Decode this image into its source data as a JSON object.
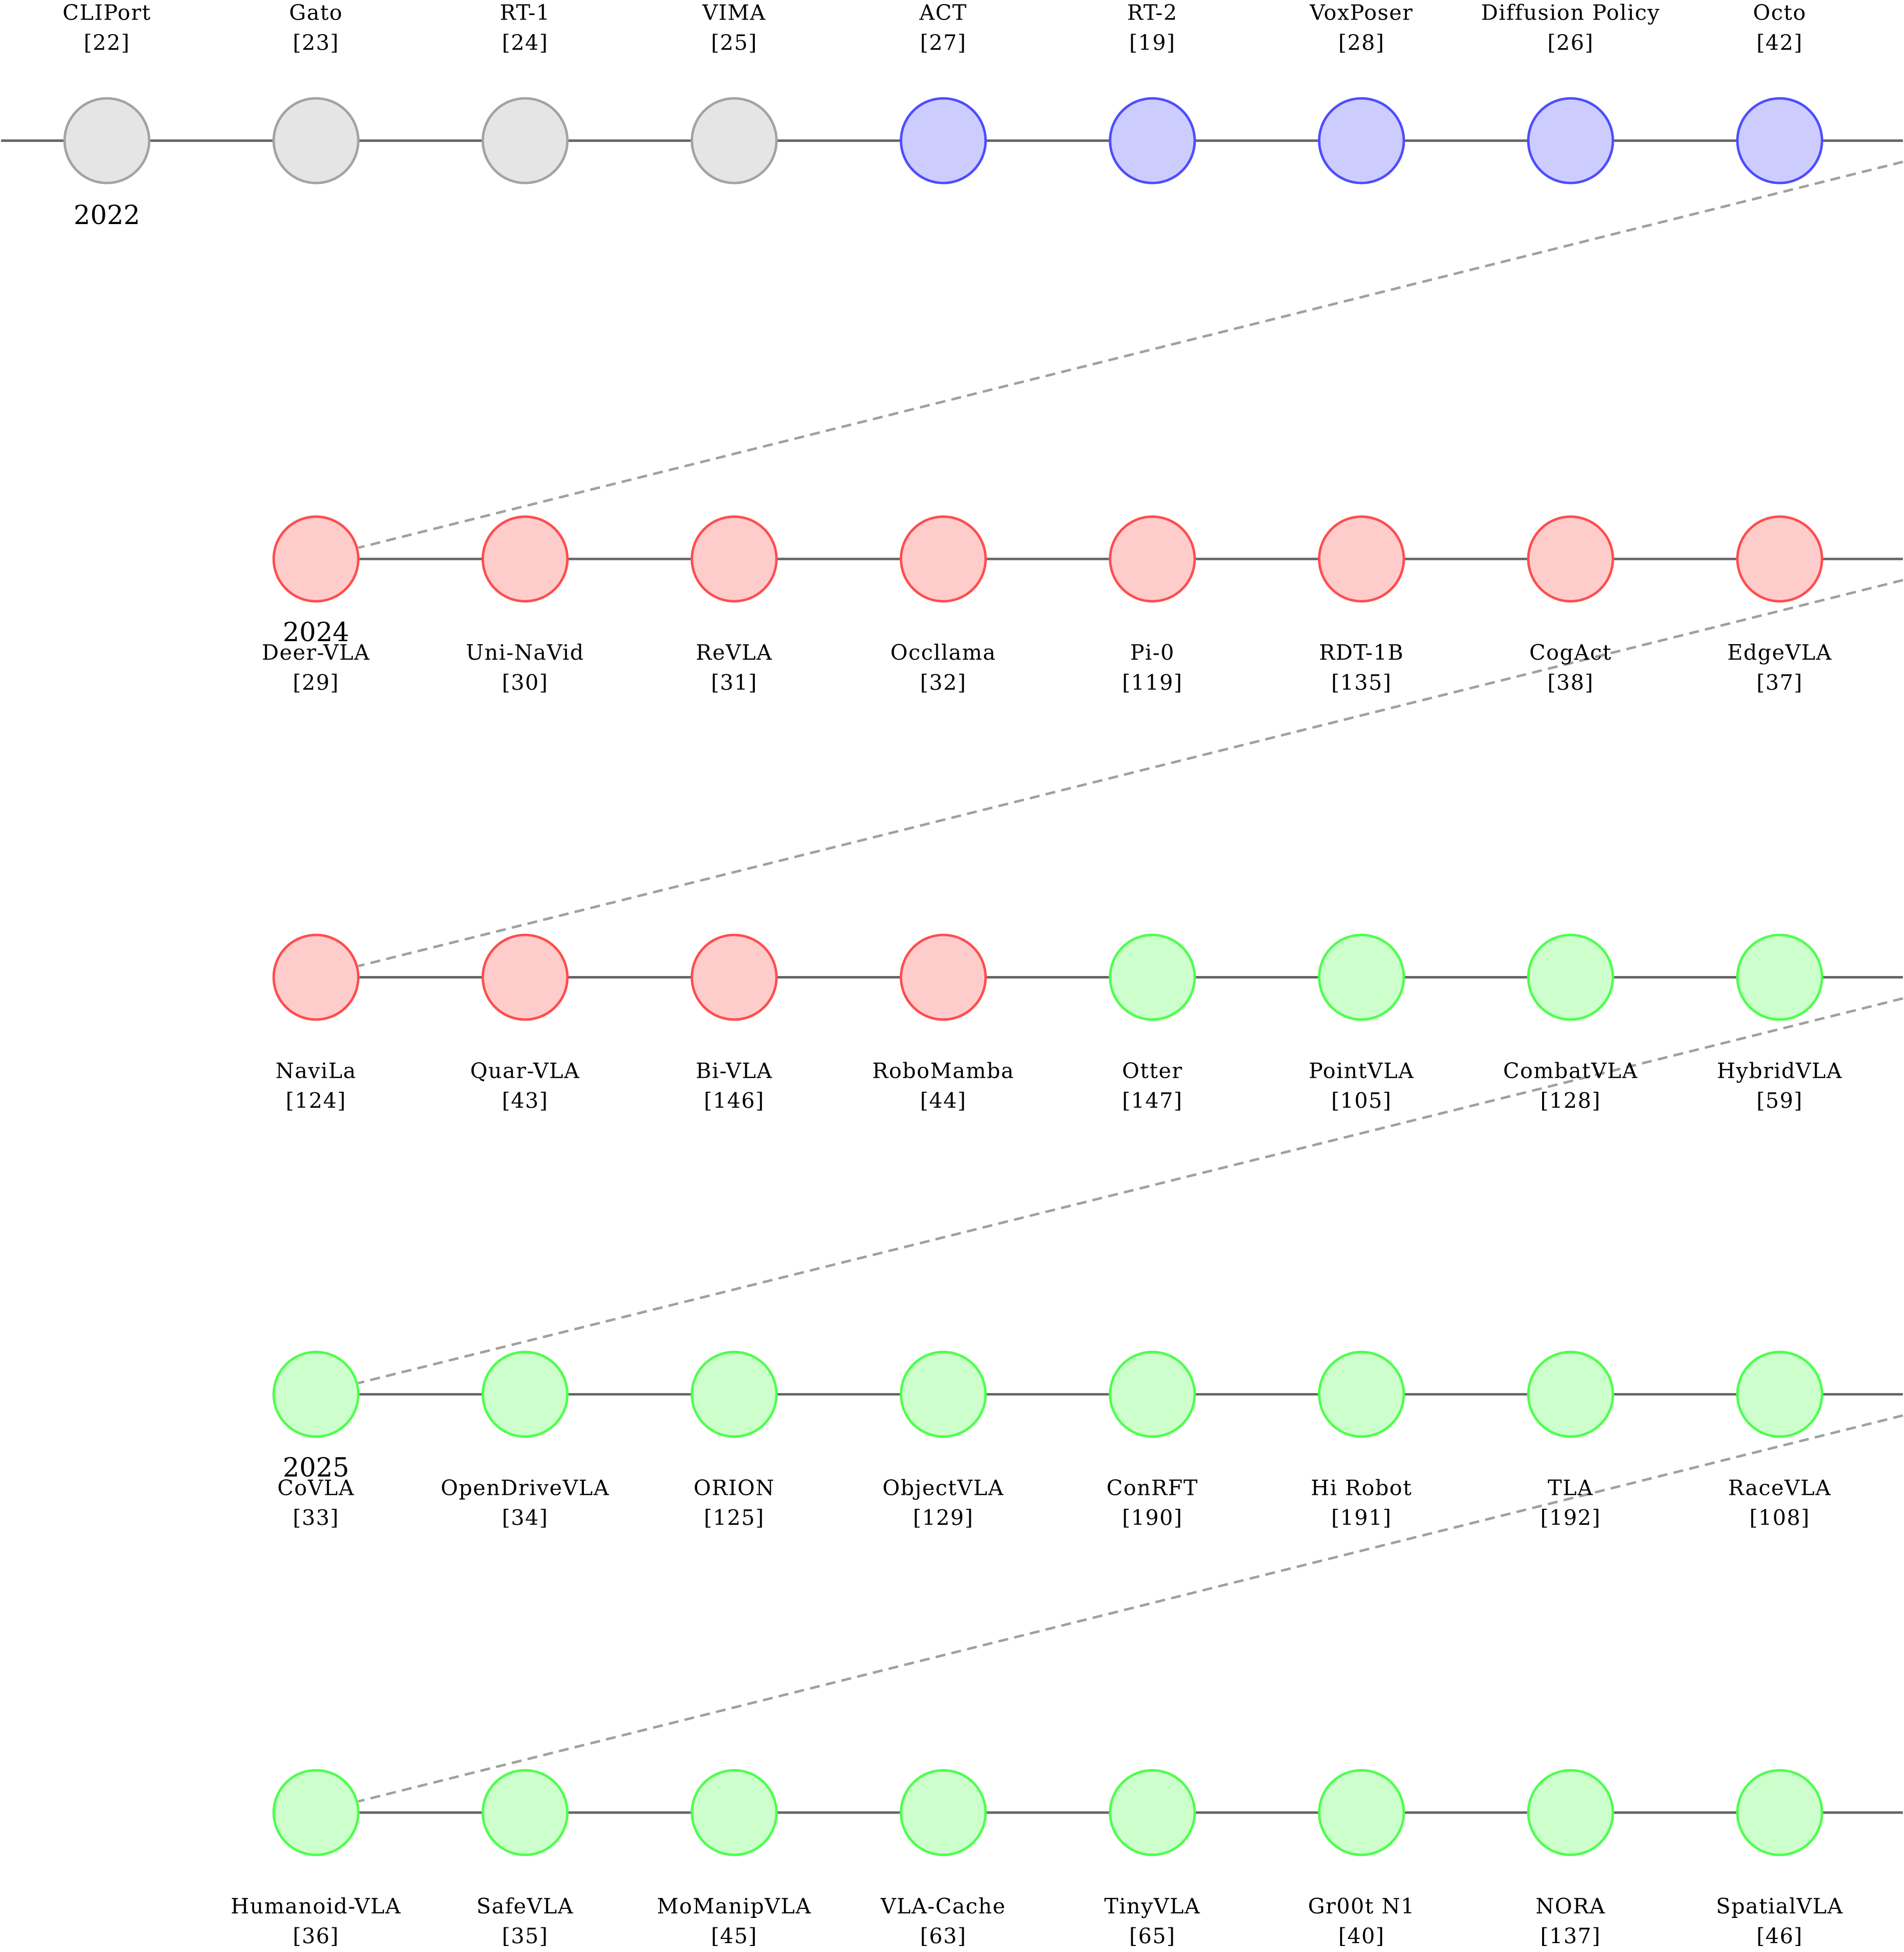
{
  "palette": {
    "gray": {
      "fill": "#e5e5e5",
      "stroke": "#a3a3a3"
    },
    "blue": {
      "fill": "#ccccff",
      "stroke": "#4d4dff"
    },
    "red": {
      "fill": "#ffcccc",
      "stroke": "#ff4d4d"
    },
    "green": {
      "fill": "#ccffcc",
      "stroke": "#4dff4d"
    },
    "line": "#666666",
    "connector": "#a0a0a0"
  },
  "rows": [
    {
      "label_position": "above",
      "year": "2022",
      "nodes": [
        {
          "name": "CLIPort",
          "ref": "[22]",
          "group": "gray"
        },
        {
          "name": "Gato",
          "ref": "[23]",
          "group": "gray"
        },
        {
          "name": "RT-1",
          "ref": "[24]",
          "group": "gray"
        },
        {
          "name": "VIMA",
          "ref": "[25]",
          "group": "gray"
        },
        {
          "name": "ACT",
          "ref": "[27]",
          "group": "blue"
        },
        {
          "name": "RT-2",
          "ref": "[19]",
          "group": "blue"
        },
        {
          "name": "VoxPoser",
          "ref": "[28]",
          "group": "blue"
        },
        {
          "name": "Diffusion Policy",
          "ref": "[26]",
          "group": "blue"
        },
        {
          "name": "Octo",
          "ref": "[42]",
          "group": "blue"
        }
      ]
    },
    {
      "label_position": "below",
      "year": "2024",
      "nodes": [
        {
          "name": "Deer-VLA",
          "ref": "[29]",
          "group": "red"
        },
        {
          "name": "Uni-NaVid",
          "ref": "[30]",
          "group": "red"
        },
        {
          "name": "ReVLA",
          "ref": "[31]",
          "group": "red"
        },
        {
          "name": "Occllama",
          "ref": "[32]",
          "group": "red"
        },
        {
          "name": "Pi-0",
          "ref": "[119]",
          "group": "red"
        },
        {
          "name": "RDT-1B",
          "ref": "[135]",
          "group": "red"
        },
        {
          "name": "CogAct",
          "ref": "[38]",
          "group": "red"
        },
        {
          "name": "EdgeVLA",
          "ref": "[37]",
          "group": "red"
        }
      ]
    },
    {
      "label_position": "below",
      "year": "",
      "nodes": [
        {
          "name": "NaviLa",
          "ref": "[124]",
          "group": "red"
        },
        {
          "name": "Quar-VLA",
          "ref": "[43]",
          "group": "red"
        },
        {
          "name": "Bi-VLA",
          "ref": "[146]",
          "group": "red"
        },
        {
          "name": "RoboMamba",
          "ref": "[44]",
          "group": "red"
        },
        {
          "name": "Otter",
          "ref": "[147]",
          "group": "green"
        },
        {
          "name": "PointVLA",
          "ref": "[105]",
          "group": "green"
        },
        {
          "name": "CombatVLA",
          "ref": "[128]",
          "group": "green"
        },
        {
          "name": "HybridVLA",
          "ref": "[59]",
          "group": "green"
        }
      ]
    },
    {
      "label_position": "below",
      "year": "2025",
      "nodes": [
        {
          "name": "CoVLA",
          "ref": "[33]",
          "group": "green"
        },
        {
          "name": "OpenDriveVLA",
          "ref": "[34]",
          "group": "green"
        },
        {
          "name": "ORION",
          "ref": "[125]",
          "group": "green"
        },
        {
          "name": "ObjectVLA",
          "ref": "[129]",
          "group": "green"
        },
        {
          "name": "ConRFT",
          "ref": "[190]",
          "group": "green"
        },
        {
          "name": "Hi Robot",
          "ref": "[191]",
          "group": "green"
        },
        {
          "name": "TLA",
          "ref": "[192]",
          "group": "green"
        },
        {
          "name": "RaceVLA",
          "ref": "[108]",
          "group": "green"
        }
      ]
    },
    {
      "label_position": "below",
      "year": "",
      "nodes": [
        {
          "name": "Humanoid-VLA",
          "ref": "[36]",
          "group": "green"
        },
        {
          "name": "SafeVLA",
          "ref": "[35]",
          "group": "green"
        },
        {
          "name": "MoManipVLA",
          "ref": "[45]",
          "group": "green"
        },
        {
          "name": "VLA-Cache",
          "ref": "[63]",
          "group": "green"
        },
        {
          "name": "TinyVLA",
          "ref": "[65]",
          "group": "green"
        },
        {
          "name": "Gr00t N1",
          "ref": "[40]",
          "group": "green"
        },
        {
          "name": "NORA",
          "ref": "[137]",
          "group": "green"
        },
        {
          "name": "SpatialVLA",
          "ref": "[46]",
          "group": "green"
        }
      ]
    }
  ]
}
